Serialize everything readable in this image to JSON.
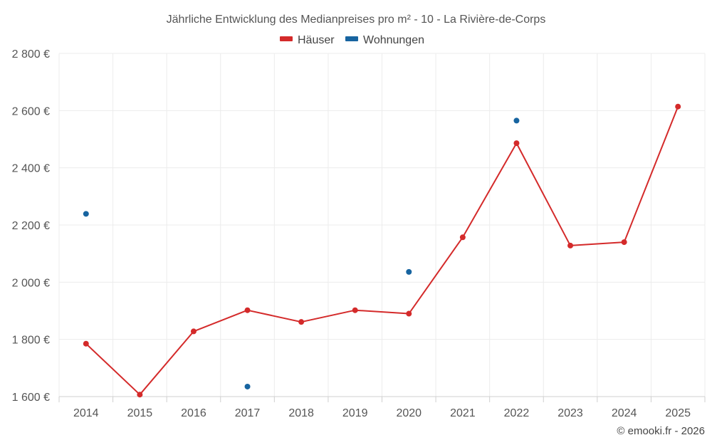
{
  "chart_data": {
    "type": "line",
    "title": "Jährliche Entwicklung des Medianpreises pro m² - 10 - La Rivière-de-Corps",
    "xlabel": "",
    "ylabel": "",
    "categories": [
      "2014",
      "2015",
      "2016",
      "2017",
      "2018",
      "2019",
      "2020",
      "2021",
      "2022",
      "2023",
      "2024",
      "2025"
    ],
    "ylim": [
      1600,
      2800
    ],
    "yticks": [
      1600,
      1800,
      2000,
      2200,
      2400,
      2600,
      2800
    ],
    "ytick_labels": [
      "1 600 €",
      "1 800 €",
      "2 000 €",
      "2 200 €",
      "2 400 €",
      "2 600 €",
      "2 800 €"
    ],
    "grid": true,
    "legend_position": "top-center",
    "series": [
      {
        "name": "Häuser",
        "color": "#d42a2a",
        "style": "line-with-markers",
        "values": [
          1785,
          1607,
          1828,
          1902,
          1861,
          1902,
          1890,
          2157,
          2486,
          2128,
          2140,
          2614
        ]
      },
      {
        "name": "Wohnungen",
        "color": "#1764a0",
        "style": "markers-only",
        "values": [
          2239,
          null,
          null,
          1635,
          null,
          null,
          2036,
          null,
          2565,
          null,
          null,
          null
        ]
      }
    ],
    "credit": "© emooki.fr - 2026"
  }
}
